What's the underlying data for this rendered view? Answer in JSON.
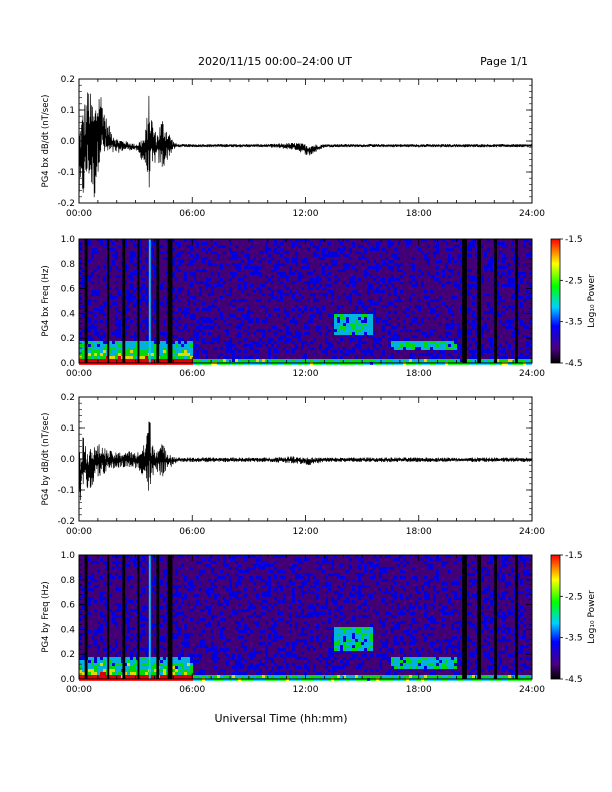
{
  "header": {
    "title": "2020/11/15  00:00–24:00 UT",
    "page": "Page 1/1"
  },
  "footer": {
    "xlabel": "Universal Time (hh:mm)"
  },
  "colors": {
    "trace": "#000000",
    "background": "#ffffff",
    "colormap": [
      "#000000",
      "#4b0082",
      "#0000ff",
      "#00d0ff",
      "#00ff00",
      "#ffff00",
      "#ff0000"
    ]
  },
  "chart_data": [
    {
      "type": "line",
      "id": "bx-series",
      "ylabel": "PG4 bx dB/dt (nT/sec)",
      "xlim": [
        0,
        24
      ],
      "ylim": [
        -0.2,
        0.2
      ],
      "xticks": [
        "00:00",
        "06:00",
        "12:00",
        "18:00",
        "24:00"
      ],
      "yticks": [
        "-0.2",
        "-0.1",
        "0.0",
        "0.1",
        "0.2"
      ],
      "envelope": {
        "x": [
          0,
          0.2,
          0.5,
          0.8,
          1.1,
          1.5,
          2.0,
          2.5,
          3.0,
          3.5,
          3.7,
          3.9,
          4.1,
          4.4,
          4.7,
          5.0,
          5.2,
          6,
          8,
          10,
          11.5,
          12.2,
          13,
          15,
          18,
          20,
          22,
          24
        ],
        "upper": [
          0.05,
          0.11,
          0.18,
          0.12,
          0.18,
          0.06,
          0.01,
          0.0,
          -0.01,
          0.02,
          0.15,
          0.07,
          0.02,
          0.08,
          0.04,
          0.0,
          -0.01,
          -0.01,
          -0.01,
          -0.01,
          -0.005,
          -0.01,
          -0.01,
          -0.01,
          -0.01,
          -0.01,
          -0.01,
          -0.01
        ],
        "lower": [
          -0.2,
          -0.2,
          -0.12,
          -0.2,
          -0.06,
          -0.05,
          -0.04,
          -0.03,
          -0.03,
          -0.08,
          -0.16,
          -0.1,
          -0.06,
          -0.1,
          -0.06,
          -0.03,
          -0.02,
          -0.02,
          -0.02,
          -0.02,
          -0.03,
          -0.05,
          -0.02,
          -0.02,
          -0.02,
          -0.02,
          -0.02,
          -0.02
        ]
      }
    },
    {
      "type": "heatmap",
      "id": "bx-spectrogram",
      "ylabel": "PG4 bx Freq (Hz)",
      "xlim": [
        0,
        24
      ],
      "ylim": [
        0.0,
        1.0
      ],
      "xticks": [
        "00:00",
        "06:00",
        "12:00",
        "18:00",
        "24:00"
      ],
      "yticks": [
        "0.0",
        "0.2",
        "0.4",
        "0.6",
        "0.8",
        "1.0"
      ],
      "colorbar": {
        "label": "Log₁₀ Power",
        "range": [
          -4.5,
          -1.5
        ],
        "ticks": [
          "-1.5",
          "-2.5",
          "-3.5",
          "-4.5"
        ]
      },
      "gaps": [
        [
          0.3,
          0.45
        ],
        [
          1.5,
          1.6
        ],
        [
          2.3,
          2.45
        ],
        [
          3.1,
          3.2
        ],
        [
          4.1,
          4.25
        ],
        [
          4.7,
          4.95
        ],
        [
          20.3,
          20.55
        ],
        [
          21.1,
          21.3
        ],
        [
          22.0,
          22.15
        ],
        [
          23.1,
          23.25
        ]
      ],
      "spikes": [
        [
          3.7,
          3.8
        ]
      ],
      "features": [
        {
          "name": "low-freq-band",
          "x": [
            0,
            6
          ],
          "y": [
            0.0,
            0.2
          ]
        },
        {
          "name": "midday-enhancement",
          "x": [
            13.5,
            15.5
          ],
          "y": [
            0.25,
            0.4
          ]
        },
        {
          "name": "rising-band",
          "x": [
            16.5,
            20.0
          ],
          "y": [
            0.12,
            0.2
          ]
        }
      ]
    },
    {
      "type": "line",
      "id": "by-series",
      "ylabel": "PG4 by dB/dt (nT/sec)",
      "xlim": [
        0,
        24
      ],
      "ylim": [
        -0.2,
        0.2
      ],
      "xticks": [
        "00:00",
        "06:00",
        "12:00",
        "18:00",
        "24:00"
      ],
      "yticks": [
        "-0.2",
        "-0.1",
        "0.0",
        "0.1",
        "0.2"
      ],
      "envelope": {
        "x": [
          0,
          0.2,
          0.5,
          0.8,
          1.1,
          1.5,
          2.0,
          2.5,
          3.0,
          3.5,
          3.7,
          3.9,
          4.1,
          4.4,
          4.7,
          5.0,
          5.2,
          6,
          8,
          10,
          11.5,
          12.2,
          13,
          15,
          18,
          20,
          22,
          24
        ],
        "upper": [
          0.03,
          0.07,
          0.06,
          0.04,
          0.05,
          0.03,
          0.02,
          0.03,
          0.02,
          0.05,
          0.16,
          0.06,
          0.04,
          0.05,
          0.03,
          0.01,
          0.005,
          0.005,
          0.005,
          0.005,
          0.01,
          0.005,
          0.005,
          0.005,
          0.005,
          0.005,
          0.005,
          0.005
        ],
        "lower": [
          -0.17,
          -0.09,
          -0.12,
          -0.07,
          -0.06,
          -0.04,
          -0.03,
          -0.03,
          -0.03,
          -0.06,
          -0.12,
          -0.08,
          -0.04,
          -0.06,
          -0.04,
          -0.02,
          -0.01,
          -0.01,
          -0.01,
          -0.01,
          -0.015,
          -0.02,
          -0.01,
          -0.01,
          -0.01,
          -0.01,
          -0.01,
          -0.01
        ]
      }
    },
    {
      "type": "heatmap",
      "id": "by-spectrogram",
      "ylabel": "PG4 by Freq (Hz)",
      "xlim": [
        0,
        24
      ],
      "ylim": [
        0.0,
        1.0
      ],
      "xticks": [
        "00:00",
        "06:00",
        "12:00",
        "18:00",
        "24:00"
      ],
      "yticks": [
        "0.0",
        "0.2",
        "0.4",
        "0.6",
        "0.8",
        "1.0"
      ],
      "colorbar": {
        "label": "Log₁₀ Power",
        "range": [
          -4.5,
          -1.5
        ],
        "ticks": [
          "-1.5",
          "-2.5",
          "-3.5",
          "-4.5"
        ]
      },
      "gaps": [
        [
          0.3,
          0.45
        ],
        [
          1.5,
          1.6
        ],
        [
          2.3,
          2.45
        ],
        [
          3.1,
          3.2
        ],
        [
          4.1,
          4.25
        ],
        [
          4.7,
          4.95
        ],
        [
          20.3,
          20.55
        ],
        [
          21.1,
          21.3
        ],
        [
          22.0,
          22.15
        ],
        [
          23.1,
          23.25
        ]
      ],
      "spikes": [
        [
          3.7,
          3.8
        ]
      ],
      "features": [
        {
          "name": "low-freq-band",
          "x": [
            0,
            6
          ],
          "y": [
            0.0,
            0.2
          ]
        },
        {
          "name": "midday-enhancement",
          "x": [
            13.5,
            15.5
          ],
          "y": [
            0.25,
            0.42
          ]
        },
        {
          "name": "rising-band",
          "x": [
            16.5,
            20.0
          ],
          "y": [
            0.1,
            0.19
          ]
        }
      ]
    }
  ]
}
